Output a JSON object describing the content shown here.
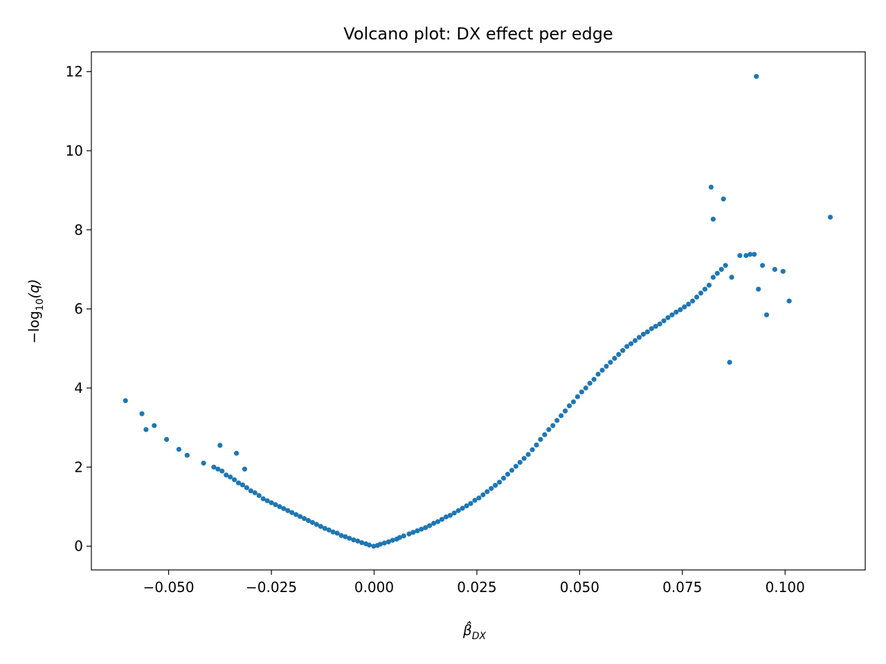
{
  "chart_data": {
    "type": "scatter",
    "title": "Volcano plot: DX effect per edge",
    "xlabel": "β̂DX",
    "xlabel_base": "β̂",
    "xlabel_sub": "DX",
    "ylabel": "−log10(q)",
    "ylabel_main": "−log",
    "ylabel_sub": "10",
    "ylabel_tail": "(q)",
    "xlim": [
      -0.0688,
      0.1195
    ],
    "ylim": [
      -0.6,
      12.5
    ],
    "xticks": [
      -0.05,
      -0.025,
      0.0,
      0.025,
      0.05,
      0.075,
      0.1
    ],
    "xtick_labels": [
      "−0.050",
      "−0.025",
      "0.000",
      "0.025",
      "0.050",
      "0.075",
      "0.100"
    ],
    "yticks": [
      0,
      2,
      4,
      6,
      8,
      10,
      12
    ],
    "ytick_labels": [
      "0",
      "2",
      "4",
      "6",
      "8",
      "10",
      "12"
    ],
    "grid": false,
    "marker_color": "#1f77b4",
    "series": [
      {
        "x": [
          -0.0001,
          0.0008,
          -0.0012,
          0.0015,
          -0.002,
          0.0025,
          -0.003,
          0.0035,
          -0.004,
          0.0045,
          -0.005,
          0.0055,
          -0.006,
          0.0062,
          -0.007,
          0.0072,
          -0.008,
          0.0085,
          -0.009,
          0.0095,
          -0.01,
          0.0105,
          -0.011,
          0.0115,
          -0.012,
          0.0125,
          -0.013,
          0.0135,
          -0.014,
          0.0145,
          -0.015,
          0.0155,
          -0.016,
          0.0165,
          -0.017,
          0.0175,
          -0.018,
          0.0185,
          -0.019,
          0.0195,
          -0.02,
          0.0205,
          -0.021,
          0.0215,
          -0.022,
          0.0225,
          -0.023,
          0.0235,
          -0.024,
          0.0245,
          -0.025,
          0.0255,
          -0.026,
          0.0265,
          -0.027,
          0.0275,
          -0.028,
          0.0285,
          -0.029,
          0.0295,
          -0.03,
          0.0305,
          -0.031,
          0.0315,
          -0.032,
          0.0325,
          -0.033,
          0.0335,
          -0.034,
          0.0345,
          -0.035,
          0.0355,
          -0.036,
          0.0365,
          -0.037,
          0.0375,
          -0.038,
          0.0385,
          -0.039,
          0.0395,
          0.0405,
          0.0415,
          0.0425,
          0.0435,
          0.0445,
          0.0455,
          0.0465,
          0.0475,
          0.0485,
          0.0495,
          0.0505,
          0.0515,
          0.0525,
          0.0535,
          0.0545,
          0.0555,
          0.0565,
          0.0575,
          0.0585,
          0.0595,
          0.0605,
          0.0615,
          0.0625,
          0.0635,
          0.0645,
          0.0655,
          0.0665,
          0.0675,
          0.0685,
          0.0695,
          0.0705,
          0.0715,
          0.0725,
          0.0735,
          0.0745,
          0.0755,
          0.0765,
          0.0775,
          0.0785,
          0.0795,
          0.0805,
          0.0815,
          0.0825,
          0.0835,
          0.0845,
          0.0855,
          0.0865,
          0.087,
          0.089,
          0.0905,
          0.0915,
          0.0925,
          0.0935,
          0.0945,
          0.0955,
          0.0975,
          0.0995,
          0.101,
          0.111,
          0.093,
          0.082,
          0.0825,
          0.085,
          -0.0605,
          -0.0565,
          -0.0555,
          -0.0535,
          -0.0505,
          -0.0475,
          -0.0455,
          -0.0415,
          -0.0375,
          -0.0335,
          -0.0315
        ],
        "y": [
          0.0,
          0.02,
          0.03,
          0.05,
          0.06,
          0.08,
          0.09,
          0.11,
          0.13,
          0.15,
          0.16,
          0.18,
          0.2,
          0.22,
          0.24,
          0.26,
          0.27,
          0.31,
          0.33,
          0.35,
          0.36,
          0.39,
          0.41,
          0.43,
          0.45,
          0.47,
          0.5,
          0.52,
          0.55,
          0.58,
          0.6,
          0.62,
          0.65,
          0.68,
          0.7,
          0.74,
          0.75,
          0.78,
          0.8,
          0.84,
          0.85,
          0.9,
          0.9,
          0.96,
          0.95,
          1.02,
          1.0,
          1.08,
          1.05,
          1.16,
          1.1,
          1.22,
          1.15,
          1.3,
          1.2,
          1.38,
          1.28,
          1.46,
          1.35,
          1.54,
          1.4,
          1.62,
          1.48,
          1.72,
          1.55,
          1.82,
          1.6,
          1.92,
          1.68,
          2.02,
          1.75,
          2.12,
          1.8,
          2.22,
          1.9,
          2.32,
          1.95,
          2.44,
          2.0,
          2.56,
          2.7,
          2.82,
          2.95,
          3.05,
          3.18,
          3.3,
          3.42,
          3.55,
          3.65,
          3.78,
          3.9,
          4.0,
          4.12,
          4.22,
          4.35,
          4.45,
          4.55,
          4.65,
          4.75,
          4.85,
          4.95,
          5.05,
          5.12,
          5.2,
          5.28,
          5.36,
          5.42,
          5.5,
          5.56,
          5.62,
          5.7,
          5.78,
          5.85,
          5.92,
          5.98,
          6.05,
          6.12,
          6.2,
          6.3,
          6.4,
          6.5,
          6.6,
          6.8,
          6.9,
          7.0,
          7.1,
          4.65,
          6.8,
          7.35,
          7.35,
          7.38,
          7.38,
          6.5,
          7.1,
          5.85,
          7.0,
          6.95,
          6.2,
          8.32,
          11.88,
          9.08,
          8.27,
          8.78,
          3.68,
          3.35,
          2.95,
          3.05,
          2.7,
          2.45,
          2.3,
          2.1,
          2.55,
          2.35,
          1.95
        ]
      }
    ]
  }
}
